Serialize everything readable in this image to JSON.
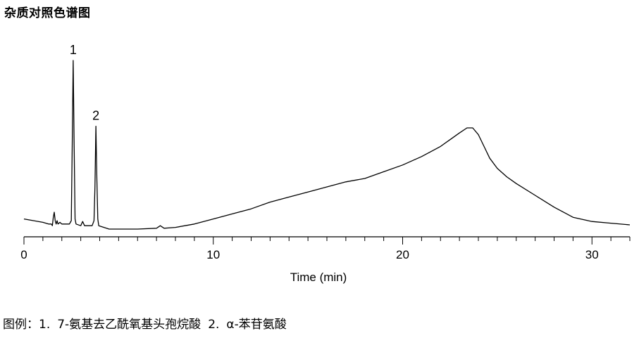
{
  "page": {
    "title": "杂质对照色谱图",
    "legend_prefix": "图例：",
    "legend_items": [
      {
        "number": "1.",
        "name": "7-氨基去乙酰氧基头孢烷酸"
      },
      {
        "number": "2.",
        "name": "α-苯苷氨酸"
      }
    ]
  },
  "chart_data": {
    "type": "line",
    "title": "",
    "xlabel": "Time (min)",
    "ylabel": "",
    "xlim": [
      0,
      32
    ],
    "x_ticks": [
      0,
      10,
      20,
      30
    ],
    "x_minor_tick_step": 1,
    "grid": false,
    "line_color": "#000000",
    "peak_labels": [
      {
        "label": "1",
        "x": 2.6
      },
      {
        "label": "2",
        "x": 3.8
      }
    ],
    "series": [
      {
        "points": [
          [
            0,
            0.06
          ],
          [
            0.5,
            0.05
          ],
          [
            1.0,
            0.04
          ],
          [
            1.3,
            0.03
          ],
          [
            1.45,
            0.03
          ],
          [
            1.5,
            0.02
          ],
          [
            1.55,
            0.07
          ],
          [
            1.6,
            0.1
          ],
          [
            1.65,
            0.05
          ],
          [
            1.7,
            0.03
          ],
          [
            1.75,
            0.05
          ],
          [
            1.8,
            0.03
          ],
          [
            1.9,
            0.04
          ],
          [
            2.0,
            0.03
          ],
          [
            2.2,
            0.03
          ],
          [
            2.4,
            0.03
          ],
          [
            2.5,
            0.05
          ],
          [
            2.55,
            0.5
          ],
          [
            2.6,
            1.0
          ],
          [
            2.65,
            0.5
          ],
          [
            2.7,
            0.06
          ],
          [
            2.75,
            0.03
          ],
          [
            3.0,
            0.02
          ],
          [
            3.1,
            0.045
          ],
          [
            3.2,
            0.02
          ],
          [
            3.6,
            0.02
          ],
          [
            3.7,
            0.05
          ],
          [
            3.75,
            0.25
          ],
          [
            3.8,
            0.61
          ],
          [
            3.85,
            0.3
          ],
          [
            3.9,
            0.06
          ],
          [
            3.95,
            0.02
          ],
          [
            4.5,
            0.0
          ],
          [
            5.0,
            0.0
          ],
          [
            6.0,
            0.0
          ],
          [
            7.0,
            0.005
          ],
          [
            7.2,
            0.02
          ],
          [
            7.4,
            0.005
          ],
          [
            8.0,
            0.01
          ],
          [
            9.0,
            0.03
          ],
          [
            10.0,
            0.06
          ],
          [
            11.0,
            0.09
          ],
          [
            12.0,
            0.12
          ],
          [
            13.0,
            0.16
          ],
          [
            14.0,
            0.19
          ],
          [
            15.0,
            0.22
          ],
          [
            16.0,
            0.25
          ],
          [
            17.0,
            0.28
          ],
          [
            18.0,
            0.3
          ],
          [
            19.0,
            0.34
          ],
          [
            20.0,
            0.38
          ],
          [
            21.0,
            0.43
          ],
          [
            22.0,
            0.49
          ],
          [
            22.5,
            0.53
          ],
          [
            23.0,
            0.57
          ],
          [
            23.4,
            0.6
          ],
          [
            23.7,
            0.6
          ],
          [
            24.0,
            0.56
          ],
          [
            24.3,
            0.49
          ],
          [
            24.6,
            0.42
          ],
          [
            25.0,
            0.36
          ],
          [
            25.5,
            0.31
          ],
          [
            26.0,
            0.27
          ],
          [
            27.0,
            0.2
          ],
          [
            28.0,
            0.13
          ],
          [
            29.0,
            0.07
          ],
          [
            30.0,
            0.045
          ],
          [
            31.0,
            0.035
          ],
          [
            32.0,
            0.025
          ]
        ]
      }
    ]
  }
}
